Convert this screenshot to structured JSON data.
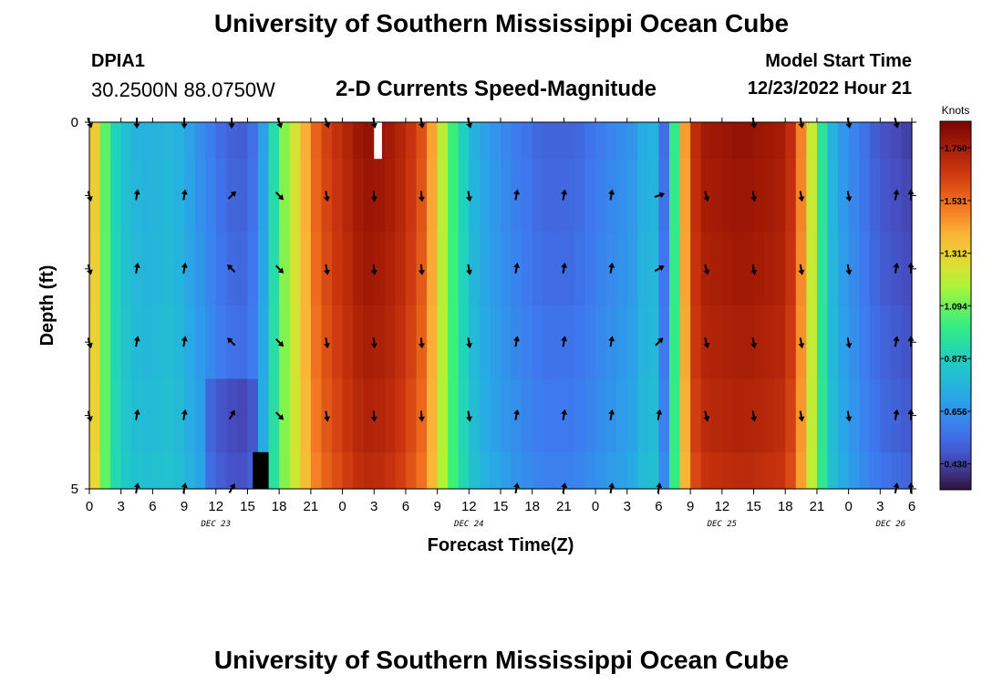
{
  "header": {
    "title": "University of Southern Mississippi Ocean Cube",
    "station": "DPIA1",
    "latlon": "30.2500N  88.0750W",
    "subtitle": "2-D Currents Speed-Magnitude",
    "model_start_label": "Model Start Time",
    "model_start_value": "12/23/2022 Hour 21"
  },
  "footer": {
    "title": "University of Southern Mississippi Ocean Cube"
  },
  "chart_data": {
    "type": "heatmap",
    "title": "2-D Currents Speed-Magnitude",
    "xlabel": "Forecast Time(Z)",
    "ylabel": "Depth (ft)",
    "ylim": [
      0,
      5
    ],
    "y_tick_labels": [
      "0",
      "5"
    ],
    "x_tick_labels": [
      "0",
      "3",
      "6",
      "9",
      "12",
      "15",
      "18",
      "21",
      "0",
      "3",
      "6",
      "9",
      "12",
      "15",
      "18",
      "21",
      "0",
      "3",
      "6",
      "9",
      "12",
      "15",
      "18",
      "21",
      "0",
      "3",
      "6"
    ],
    "day_labels": [
      {
        "label": "DEC 23",
        "hour_index": 12
      },
      {
        "label": "DEC 24",
        "hour_index": 36
      },
      {
        "label": "DEC 25",
        "hour_index": 60
      },
      {
        "label": "DEC 26",
        "hour_index": 76
      }
    ],
    "hours_total": 78,
    "depth_levels": 5,
    "colorbar": {
      "unit": "Knots",
      "min": 0.33,
      "max": 1.86,
      "tick_labels": [
        "1.750",
        "1.531",
        "1.312",
        "1.094",
        "0.875",
        "0.656",
        "0.438"
      ],
      "tick_values": [
        1.75,
        1.531,
        1.312,
        1.094,
        0.875,
        0.656,
        0.438
      ]
    },
    "speed_profile_keyframes_knots": [
      [
        0,
        1.45
      ],
      [
        1,
        1.2
      ],
      [
        2,
        0.95
      ],
      [
        3,
        0.82
      ],
      [
        5,
        0.75
      ],
      [
        8,
        0.78
      ],
      [
        11,
        0.62
      ],
      [
        13,
        0.52
      ],
      [
        15,
        0.5
      ],
      [
        16,
        0.6
      ],
      [
        17,
        0.8
      ],
      [
        18,
        1.05
      ],
      [
        19,
        1.2
      ],
      [
        20,
        1.3
      ],
      [
        21,
        1.5
      ],
      [
        22,
        1.6
      ],
      [
        24,
        1.7
      ],
      [
        26,
        1.8
      ],
      [
        28,
        1.78
      ],
      [
        30,
        1.7
      ],
      [
        32,
        1.55
      ],
      [
        33,
        1.3
      ],
      [
        34,
        1.1
      ],
      [
        35,
        0.95
      ],
      [
        36,
        0.8
      ],
      [
        37,
        0.72
      ],
      [
        40,
        0.6
      ],
      [
        43,
        0.52
      ],
      [
        46,
        0.52
      ],
      [
        49,
        0.6
      ],
      [
        52,
        0.68
      ],
      [
        53,
        0.8
      ],
      [
        54,
        0.72
      ],
      [
        54.5,
        0.55
      ],
      [
        55,
        0.8
      ],
      [
        55.5,
        1.0
      ],
      [
        56,
        1.25
      ],
      [
        57,
        1.62
      ],
      [
        58,
        1.76
      ],
      [
        62,
        1.8
      ],
      [
        66,
        1.75
      ],
      [
        67,
        1.62
      ],
      [
        68,
        1.35
      ],
      [
        69,
        1.1
      ],
      [
        70,
        0.82
      ],
      [
        71,
        0.7
      ],
      [
        73,
        0.58
      ],
      [
        75,
        0.48
      ],
      [
        78,
        0.42
      ]
    ],
    "depth_speed_factors": [
      1.0,
      0.98,
      0.96,
      0.93,
      0.9,
      0.86
    ],
    "missing_cells": [
      {
        "hour_start": 27,
        "hour_end": 27.75,
        "depth_from": 0,
        "depth_to": 0.5,
        "color": "#ffffff"
      },
      {
        "hour_start": 15.5,
        "hour_end": 17,
        "depth_from": 4.5,
        "depth_to": 5,
        "color": "#000000"
      }
    ],
    "vector_hours": [
      0,
      4.5,
      9,
      13.5,
      18,
      22.5,
      27,
      31.5,
      36,
      40.5,
      45,
      49.5,
      54,
      58.5,
      63,
      67.5,
      72,
      76.5,
      78
    ],
    "vector_rows": [
      {
        "depth": 0,
        "directions_deg": [
          160,
          180,
          180,
          180,
          160,
          160,
          170,
          170,
          165,
          null,
          null,
          null,
          null,
          null,
          170,
          170,
          170,
          165,
          null
        ]
      },
      {
        "depth": 1,
        "directions_deg": [
          165,
          10,
          10,
          45,
          135,
          170,
          175,
          175,
          170,
          10,
          10,
          10,
          70,
          165,
          170,
          170,
          170,
          10,
          0
        ]
      },
      {
        "depth": 2,
        "directions_deg": [
          165,
          10,
          10,
          315,
          135,
          170,
          175,
          175,
          170,
          10,
          10,
          10,
          60,
          165,
          170,
          170,
          170,
          10,
          0
        ]
      },
      {
        "depth": 3,
        "directions_deg": [
          165,
          10,
          10,
          315,
          135,
          170,
          175,
          175,
          170,
          10,
          10,
          10,
          45,
          165,
          170,
          170,
          170,
          10,
          0
        ]
      },
      {
        "depth": 4,
        "directions_deg": [
          165,
          10,
          10,
          30,
          135,
          170,
          175,
          175,
          170,
          10,
          10,
          10,
          10,
          165,
          170,
          170,
          170,
          10,
          0
        ]
      },
      {
        "depth": 5,
        "directions_deg": [
          null,
          10,
          10,
          30,
          null,
          null,
          null,
          null,
          null,
          10,
          10,
          10,
          10,
          null,
          null,
          null,
          null,
          10,
          0
        ]
      }
    ]
  }
}
